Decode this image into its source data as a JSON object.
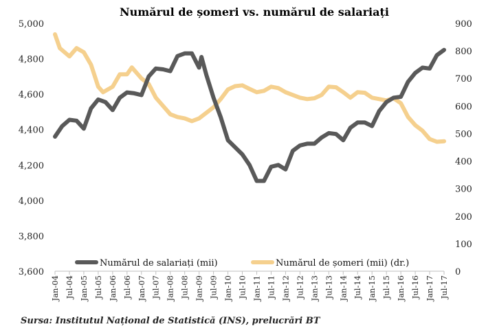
{
  "chart_data": {
    "type": "line",
    "title": "Numărul de șomeri vs. numărul de salariați",
    "source": "Sursa: Institutul Național de Statistică (INS), prelucrări BT",
    "left_axis": {
      "min": 3600,
      "max": 5000,
      "ticks": [
        "3,600",
        "3,800",
        "4,000",
        "4,200",
        "4,400",
        "4,600",
        "4,800",
        "5,000"
      ],
      "tick_values": [
        3600,
        3800,
        4000,
        4200,
        4400,
        4600,
        4800,
        5000
      ]
    },
    "right_axis": {
      "min": 0,
      "max": 900,
      "ticks": [
        "0",
        "100",
        "200",
        "300",
        "400",
        "500",
        "600",
        "700",
        "800",
        "900"
      ],
      "tick_values": [
        0,
        100,
        200,
        300,
        400,
        500,
        600,
        700,
        800,
        900
      ]
    },
    "x_ticks": [
      "Jan-04",
      "Jul-04",
      "Jan-05",
      "Jul-05",
      "Jan-06",
      "Jul-06",
      "Jan-07",
      "Jul-07",
      "Jan-08",
      "Jul-08",
      "Jan-09",
      "Jul-09",
      "Jan-10",
      "Jul-10",
      "Jan-11",
      "Jul-11",
      "Jan-12",
      "Jul-12",
      "Jan-13",
      "Jul-13",
      "Jan-14",
      "Jul-14",
      "Jan-15",
      "Jul-15",
      "Jan-16",
      "Jul-16",
      "Jan-17",
      "Jul-17"
    ],
    "x_range": [
      "Jan-04",
      "Jul-17"
    ],
    "legend_position": "bottom-center",
    "series": [
      {
        "name": "Numărul de salariați (mii)",
        "axis": "left",
        "color": "#595959",
        "points": [
          [
            "Jan-04",
            4360
          ],
          [
            "Apr-04",
            4420
          ],
          [
            "Jul-04",
            4455
          ],
          [
            "Oct-04",
            4450
          ],
          [
            "Jan-05",
            4405
          ],
          [
            "Apr-05",
            4520
          ],
          [
            "Jul-05",
            4570
          ],
          [
            "Oct-05",
            4555
          ],
          [
            "Jan-06",
            4510
          ],
          [
            "Apr-06",
            4580
          ],
          [
            "Jul-06",
            4610
          ],
          [
            "Oct-06",
            4605
          ],
          [
            "Jan-07",
            4595
          ],
          [
            "Apr-07",
            4700
          ],
          [
            "Jul-07",
            4745
          ],
          [
            "Oct-07",
            4740
          ],
          [
            "Jan-08",
            4730
          ],
          [
            "Apr-08",
            4815
          ],
          [
            "Jul-08",
            4830
          ],
          [
            "Oct-08",
            4830
          ],
          [
            "Jan-09",
            4750
          ],
          [
            "Feb-09",
            4810
          ],
          [
            "Apr-09",
            4710
          ],
          [
            "Jul-09",
            4580
          ],
          [
            "Oct-09",
            4470
          ],
          [
            "Jan-10",
            4340
          ],
          [
            "Apr-10",
            4300
          ],
          [
            "Jul-10",
            4260
          ],
          [
            "Oct-10",
            4200
          ],
          [
            "Jan-11",
            4110
          ],
          [
            "Apr-11",
            4110
          ],
          [
            "Jul-11",
            4190
          ],
          [
            "Oct-11",
            4200
          ],
          [
            "Jan-12",
            4175
          ],
          [
            "Apr-12",
            4280
          ],
          [
            "Jul-12",
            4310
          ],
          [
            "Oct-12",
            4320
          ],
          [
            "Jan-13",
            4320
          ],
          [
            "Apr-13",
            4355
          ],
          [
            "Jul-13",
            4380
          ],
          [
            "Oct-13",
            4375
          ],
          [
            "Jan-14",
            4340
          ],
          [
            "Apr-14",
            4410
          ],
          [
            "Jul-14",
            4440
          ],
          [
            "Oct-14",
            4440
          ],
          [
            "Jan-15",
            4420
          ],
          [
            "Apr-15",
            4505
          ],
          [
            "Jul-15",
            4555
          ],
          [
            "Oct-15",
            4580
          ],
          [
            "Jan-16",
            4585
          ],
          [
            "Apr-16",
            4670
          ],
          [
            "Jul-16",
            4720
          ],
          [
            "Oct-16",
            4750
          ],
          [
            "Jan-17",
            4745
          ],
          [
            "Apr-17",
            4820
          ],
          [
            "Jul-17",
            4850
          ]
        ]
      },
      {
        "name": "Numărul de șomeri (mii) (dr.)",
        "axis": "right",
        "color": "#F5D08E",
        "points": [
          [
            "Jan-04",
            860
          ],
          [
            "Mar-04",
            810
          ],
          [
            "Jul-04",
            780
          ],
          [
            "Oct-04",
            810
          ],
          [
            "Jan-05",
            795
          ],
          [
            "Apr-05",
            750
          ],
          [
            "Jul-05",
            670
          ],
          [
            "Sep-05",
            650
          ],
          [
            "Jan-06",
            670
          ],
          [
            "Apr-06",
            715
          ],
          [
            "Jul-06",
            715
          ],
          [
            "Sep-06",
            740
          ],
          [
            "Jan-07",
            700
          ],
          [
            "Apr-07",
            680
          ],
          [
            "Jul-07",
            630
          ],
          [
            "Oct-07",
            600
          ],
          [
            "Jan-08",
            570
          ],
          [
            "Apr-08",
            560
          ],
          [
            "Jul-08",
            555
          ],
          [
            "Oct-08",
            545
          ],
          [
            "Jan-09",
            555
          ],
          [
            "Apr-09",
            575
          ],
          [
            "Jul-09",
            595
          ],
          [
            "Oct-09",
            625
          ],
          [
            "Jan-10",
            660
          ],
          [
            "Apr-10",
            672
          ],
          [
            "Jul-10",
            675
          ],
          [
            "Oct-10",
            662
          ],
          [
            "Jan-11",
            650
          ],
          [
            "Apr-11",
            655
          ],
          [
            "Jul-11",
            670
          ],
          [
            "Oct-11",
            665
          ],
          [
            "Jan-12",
            650
          ],
          [
            "Apr-12",
            640
          ],
          [
            "Jul-12",
            630
          ],
          [
            "Oct-12",
            625
          ],
          [
            "Jan-13",
            628
          ],
          [
            "Apr-13",
            640
          ],
          [
            "Jul-13",
            670
          ],
          [
            "Oct-13",
            668
          ],
          [
            "Jan-14",
            650
          ],
          [
            "Apr-14",
            630
          ],
          [
            "Jul-14",
            650
          ],
          [
            "Oct-14",
            648
          ],
          [
            "Jan-15",
            630
          ],
          [
            "Apr-15",
            625
          ],
          [
            "Jul-15",
            620
          ],
          [
            "Oct-15",
            628
          ],
          [
            "Jan-16",
            610
          ],
          [
            "Apr-16",
            560
          ],
          [
            "Jul-16",
            530
          ],
          [
            "Oct-16",
            510
          ],
          [
            "Jan-17",
            480
          ],
          [
            "Apr-17",
            470
          ],
          [
            "Jul-17",
            472
          ]
        ]
      }
    ]
  }
}
